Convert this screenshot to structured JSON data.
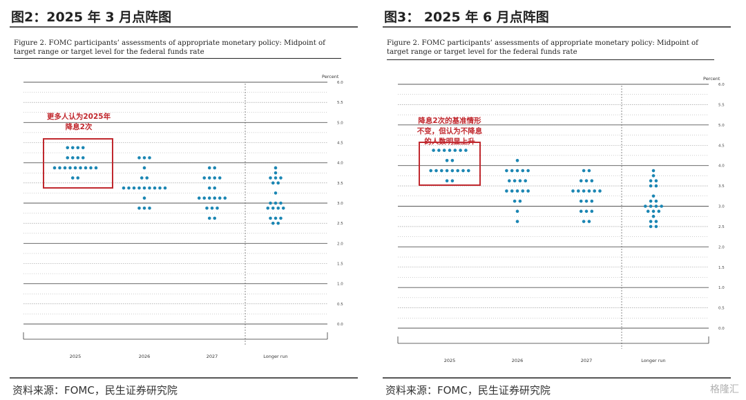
{
  "colors": {
    "dot": "#1b86b3",
    "annotation": "#c0272d",
    "rule": "#555555"
  },
  "watermark": "格隆汇",
  "panels": [
    {
      "title": "图2：2025 年 3 月点阵图",
      "caption": "Figure 2. FOMC participants’ assessments of appropriate monetary policy: Midpoint of target range or target level for the federal funds rate",
      "source": "资料来源：FOMC，民生证券研究院",
      "annotation": "更多人认为2025年\n降息2次"
    },
    {
      "title": "图3：  2025 年 6 月点阵图",
      "caption": "Figure 2. FOMC participants’ assessments of appropriate monetary policy: Midpoint of target range or target level for the federal funds rate",
      "source": "资料来源：FOMC，民生证券研究院",
      "annotation": "降息2次的基准情形\n不变，但认为不降息\n的人数明显上升"
    }
  ],
  "chart_data": [
    {
      "type": "scatter",
      "title": "Figure 2. FOMC participants’ assessments of appropriate monetary policy: Midpoint of target range or target level for the federal funds rate",
      "ylabel": "Percent",
      "ylim": [
        0,
        6
      ],
      "yticks": [
        "6.0",
        "5.5",
        "5.0",
        "4.5",
        "4.0",
        "3.5",
        "3.0",
        "2.5",
        "2.0",
        "1.5",
        "1.0",
        "0.5",
        "0.0"
      ],
      "categories": [
        "2025",
        "2026",
        "2027",
        "Longer run"
      ],
      "columns": [
        {
          "category": "2025",
          "points": [
            {
              "y": 4.375,
              "n": 4
            },
            {
              "y": 4.125,
              "n": 4
            },
            {
              "y": 3.875,
              "n": 9
            },
            {
              "y": 3.625,
              "n": 2
            }
          ]
        },
        {
          "category": "2026",
          "points": [
            {
              "y": 4.125,
              "n": 3
            },
            {
              "y": 3.875,
              "n": 1
            },
            {
              "y": 3.625,
              "n": 2
            },
            {
              "y": 3.375,
              "n": 9
            },
            {
              "y": 3.125,
              "n": 1
            },
            {
              "y": 2.875,
              "n": 3
            }
          ]
        },
        {
          "category": "2027",
          "points": [
            {
              "y": 3.875,
              "n": 2
            },
            {
              "y": 3.625,
              "n": 4
            },
            {
              "y": 3.375,
              "n": 2
            },
            {
              "y": 3.125,
              "n": 6
            },
            {
              "y": 2.875,
              "n": 3
            },
            {
              "y": 2.625,
              "n": 2
            }
          ]
        },
        {
          "category": "Longer run",
          "points": [
            {
              "y": 3.875,
              "n": 1
            },
            {
              "y": 3.75,
              "n": 1
            },
            {
              "y": 3.625,
              "n": 3
            },
            {
              "y": 3.5,
              "n": 2
            },
            {
              "y": 3.25,
              "n": 1
            },
            {
              "y": 3.0,
              "n": 3
            },
            {
              "y": 2.875,
              "n": 4
            },
            {
              "y": 2.625,
              "n": 3
            },
            {
              "y": 2.5,
              "n": 2
            }
          ]
        }
      ]
    },
    {
      "type": "scatter",
      "title": "Figure 2. FOMC participants’ assessments of appropriate monetary policy: Midpoint of target range or target level for the federal funds rate",
      "ylabel": "Percent",
      "ylim": [
        0,
        6
      ],
      "yticks": [
        "6.0",
        "5.5",
        "5.0",
        "4.5",
        "4.0",
        "3.5",
        "3.0",
        "2.5",
        "2.0",
        "1.5",
        "1.0",
        "0.5",
        "0.0"
      ],
      "categories": [
        "2025",
        "2026",
        "2027",
        "Longer run"
      ],
      "columns": [
        {
          "category": "2025",
          "points": [
            {
              "y": 4.375,
              "n": 7
            },
            {
              "y": 4.125,
              "n": 2
            },
            {
              "y": 3.875,
              "n": 8
            },
            {
              "y": 3.625,
              "n": 2
            }
          ]
        },
        {
          "category": "2026",
          "points": [
            {
              "y": 4.125,
              "n": 1
            },
            {
              "y": 3.875,
              "n": 5
            },
            {
              "y": 3.625,
              "n": 4
            },
            {
              "y": 3.375,
              "n": 5
            },
            {
              "y": 3.125,
              "n": 2
            },
            {
              "y": 2.875,
              "n": 1
            },
            {
              "y": 2.625,
              "n": 1
            }
          ]
        },
        {
          "category": "2027",
          "points": [
            {
              "y": 3.875,
              "n": 2
            },
            {
              "y": 3.625,
              "n": 3
            },
            {
              "y": 3.375,
              "n": 6
            },
            {
              "y": 3.125,
              "n": 3
            },
            {
              "y": 2.875,
              "n": 3
            },
            {
              "y": 2.625,
              "n": 2
            }
          ]
        },
        {
          "category": "Longer run",
          "points": [
            {
              "y": 3.875,
              "n": 1
            },
            {
              "y": 3.75,
              "n": 1
            },
            {
              "y": 3.625,
              "n": 2
            },
            {
              "y": 3.5,
              "n": 2
            },
            {
              "y": 3.25,
              "n": 1
            },
            {
              "y": 3.125,
              "n": 2
            },
            {
              "y": 3.0,
              "n": 4
            },
            {
              "y": 2.875,
              "n": 3
            },
            {
              "y": 2.75,
              "n": 1
            },
            {
              "y": 2.625,
              "n": 2
            },
            {
              "y": 2.5,
              "n": 2
            }
          ]
        }
      ]
    }
  ]
}
